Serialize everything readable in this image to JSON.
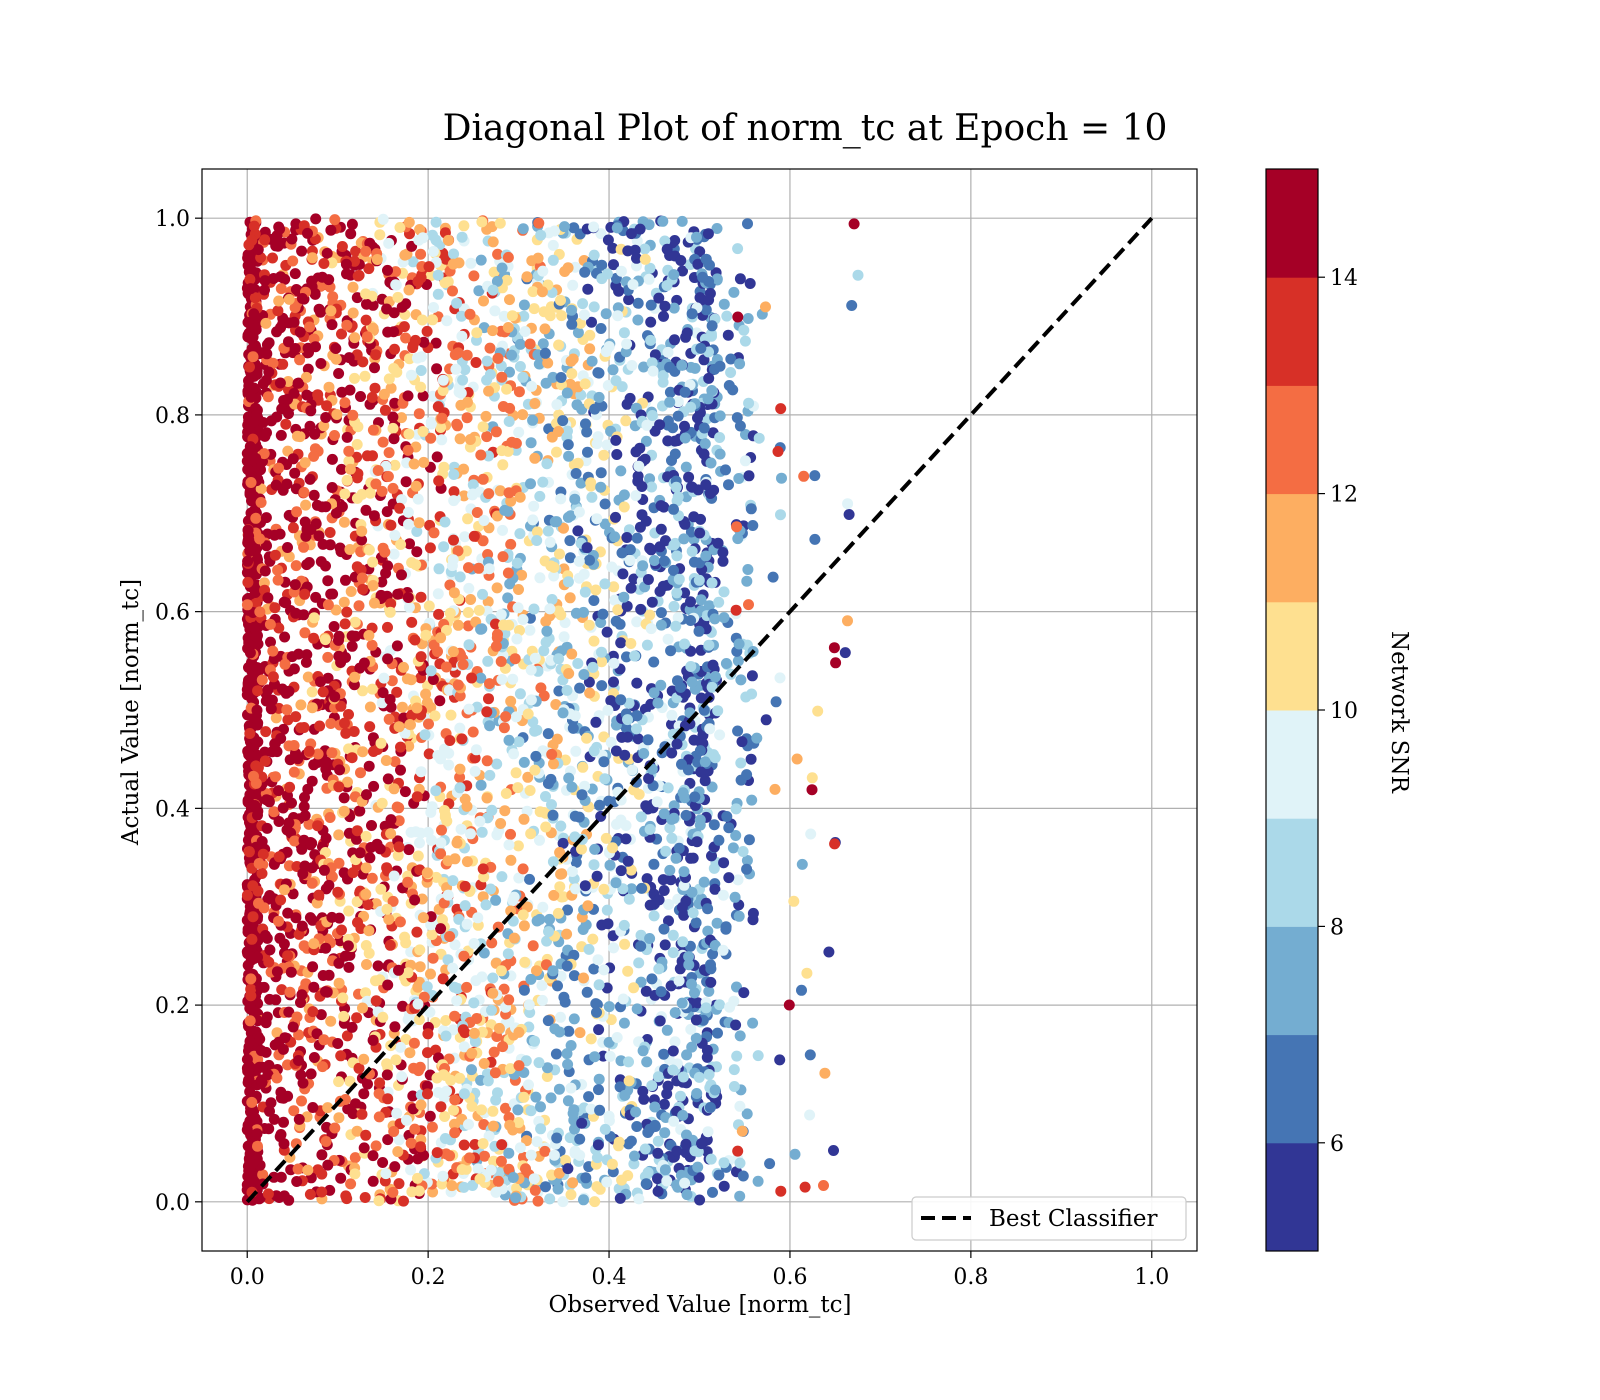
{
  "chart_data": {
    "type": "scatter",
    "title": "Diagonal Plot of norm_tc at Epoch = 10",
    "xlabel": "Observed Value [norm_tc]",
    "ylabel": "Actual Value [norm_tc]",
    "xlim": [
      -0.05,
      1.05
    ],
    "ylim": [
      -0.05,
      1.05
    ],
    "x_ticks": [
      "0.0",
      "0.2",
      "0.4",
      "0.6",
      "0.8",
      "1.0"
    ],
    "y_ticks": [
      "0.0",
      "0.2",
      "0.4",
      "0.6",
      "0.8",
      "1.0"
    ],
    "grid": true,
    "legend": {
      "position": "bottom-right",
      "entries": [
        "Best Classifier"
      ]
    },
    "reference_line": {
      "name": "Best Classifier",
      "style": "dashed",
      "color": "#000000",
      "x": [
        0,
        1
      ],
      "y": [
        0,
        1
      ]
    },
    "colorbar": {
      "label": "Network SNR",
      "range": [
        5,
        15
      ],
      "ticks": [
        "6",
        "8",
        "10",
        "12",
        "14"
      ],
      "tick_values": [
        6,
        8,
        10,
        12,
        14
      ],
      "colors": [
        "#313695",
        "#4575b4",
        "#74add1",
        "#abd9e9",
        "#e0f3f8",
        "#fee090",
        "#fdae61",
        "#f46d43",
        "#d73027",
        "#a50026"
      ]
    },
    "scatter": {
      "x_range": [
        0.0,
        0.68
      ],
      "y_range": [
        0.0,
        1.0
      ],
      "note": "dense uniform band: high SNR (red) near x=0, SNR decreasing toward blue near x≈0.5"
    }
  }
}
